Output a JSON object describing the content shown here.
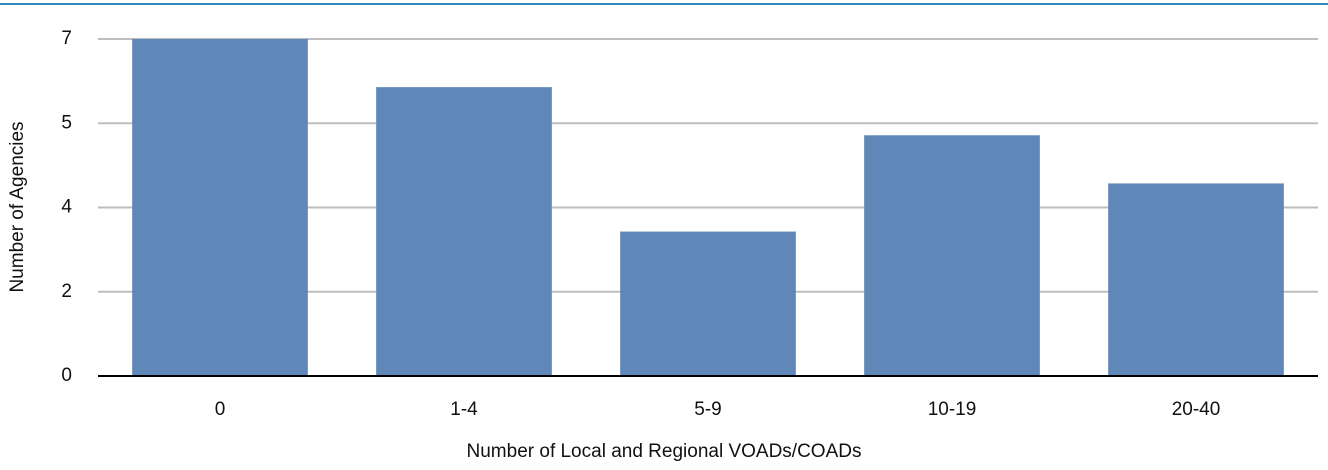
{
  "chart_data": {
    "type": "bar",
    "xlabel": "Number of Local and Regional VOADs/COADs",
    "ylabel": "Number of Agencies",
    "categories": [
      "0",
      "1-4",
      "5-9",
      "10-19",
      "20-40"
    ],
    "values": [
      7,
      6,
      3,
      5,
      4
    ],
    "color": "#5f87b8",
    "ylim": [
      0,
      7
    ],
    "yticks": [
      0,
      {
        "value": 1.75,
        "label": "2"
      },
      {
        "value": 3.5,
        "label": "4"
      },
      {
        "value": 5.25,
        "label": "5"
      },
      7
    ],
    "grid": true
  }
}
